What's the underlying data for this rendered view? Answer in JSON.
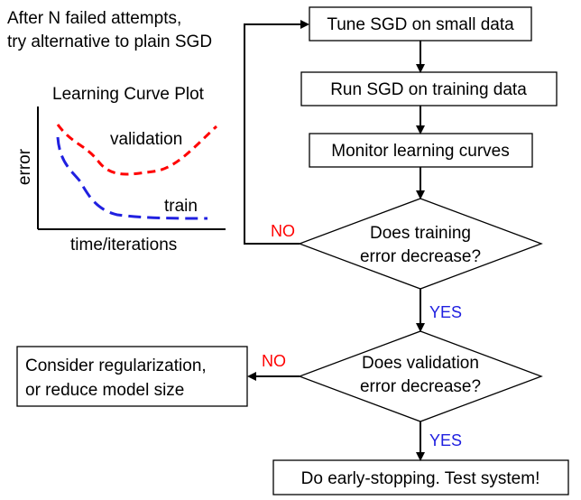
{
  "note": {
    "line1": "After N failed attempts,",
    "line2": "try alternative to plain SGD"
  },
  "plot": {
    "title": "Learning Curve Plot",
    "ylabel": "error",
    "xlabel": "time/iterations",
    "validation_label": "validation",
    "train_label": "train",
    "validation_color": "#ff0000",
    "train_color": "#2020e0"
  },
  "flow": {
    "tune": "Tune SGD on small data",
    "run": "Run SGD on training data",
    "monitor": "Monitor learning curves",
    "decision1": {
      "line1": "Does training",
      "line2": "error decrease?"
    },
    "decision2": {
      "line1": "Does validation",
      "line2": "error decrease?"
    },
    "regularize": {
      "line1": "Consider regularization,",
      "line2": "or reduce model size"
    },
    "final": "Do early-stopping. Test system!",
    "no_label_1": "NO",
    "yes_label_1": "YES",
    "no_label_2": "NO",
    "yes_label_2": "YES"
  }
}
